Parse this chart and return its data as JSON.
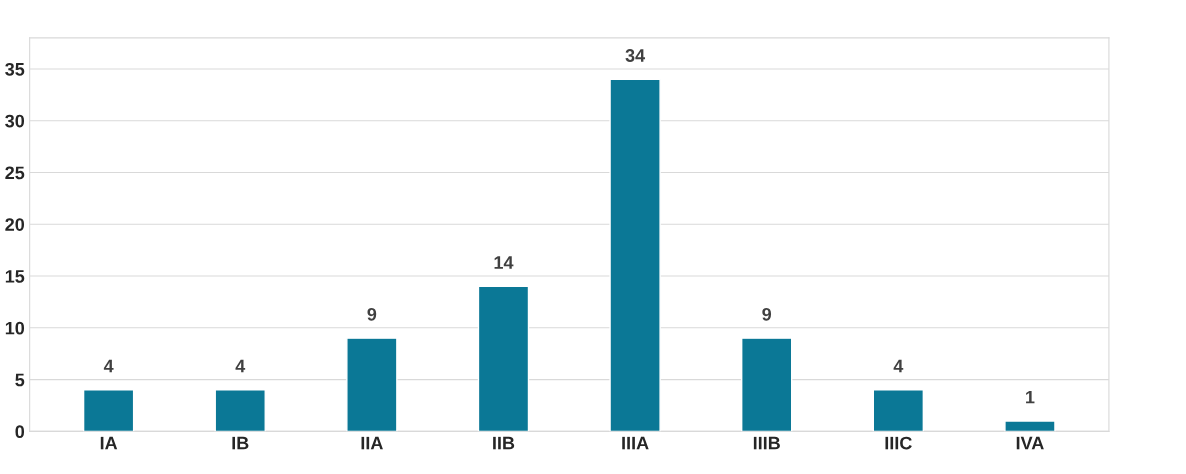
{
  "chart_data": {
    "type": "bar",
    "categories": [
      "IA",
      "IB",
      "IIA",
      "IIB",
      "IIIA",
      "IIIB",
      "IIIC",
      "IVA"
    ],
    "values": [
      4,
      4,
      9,
      14,
      34,
      9,
      4,
      1
    ],
    "color": "#0b7896",
    "ylim": [
      0,
      38
    ],
    "yticks": [
      0,
      5,
      10,
      15,
      20,
      25,
      30,
      35
    ],
    "grid": "y",
    "data_labels": true,
    "legend": false
  }
}
